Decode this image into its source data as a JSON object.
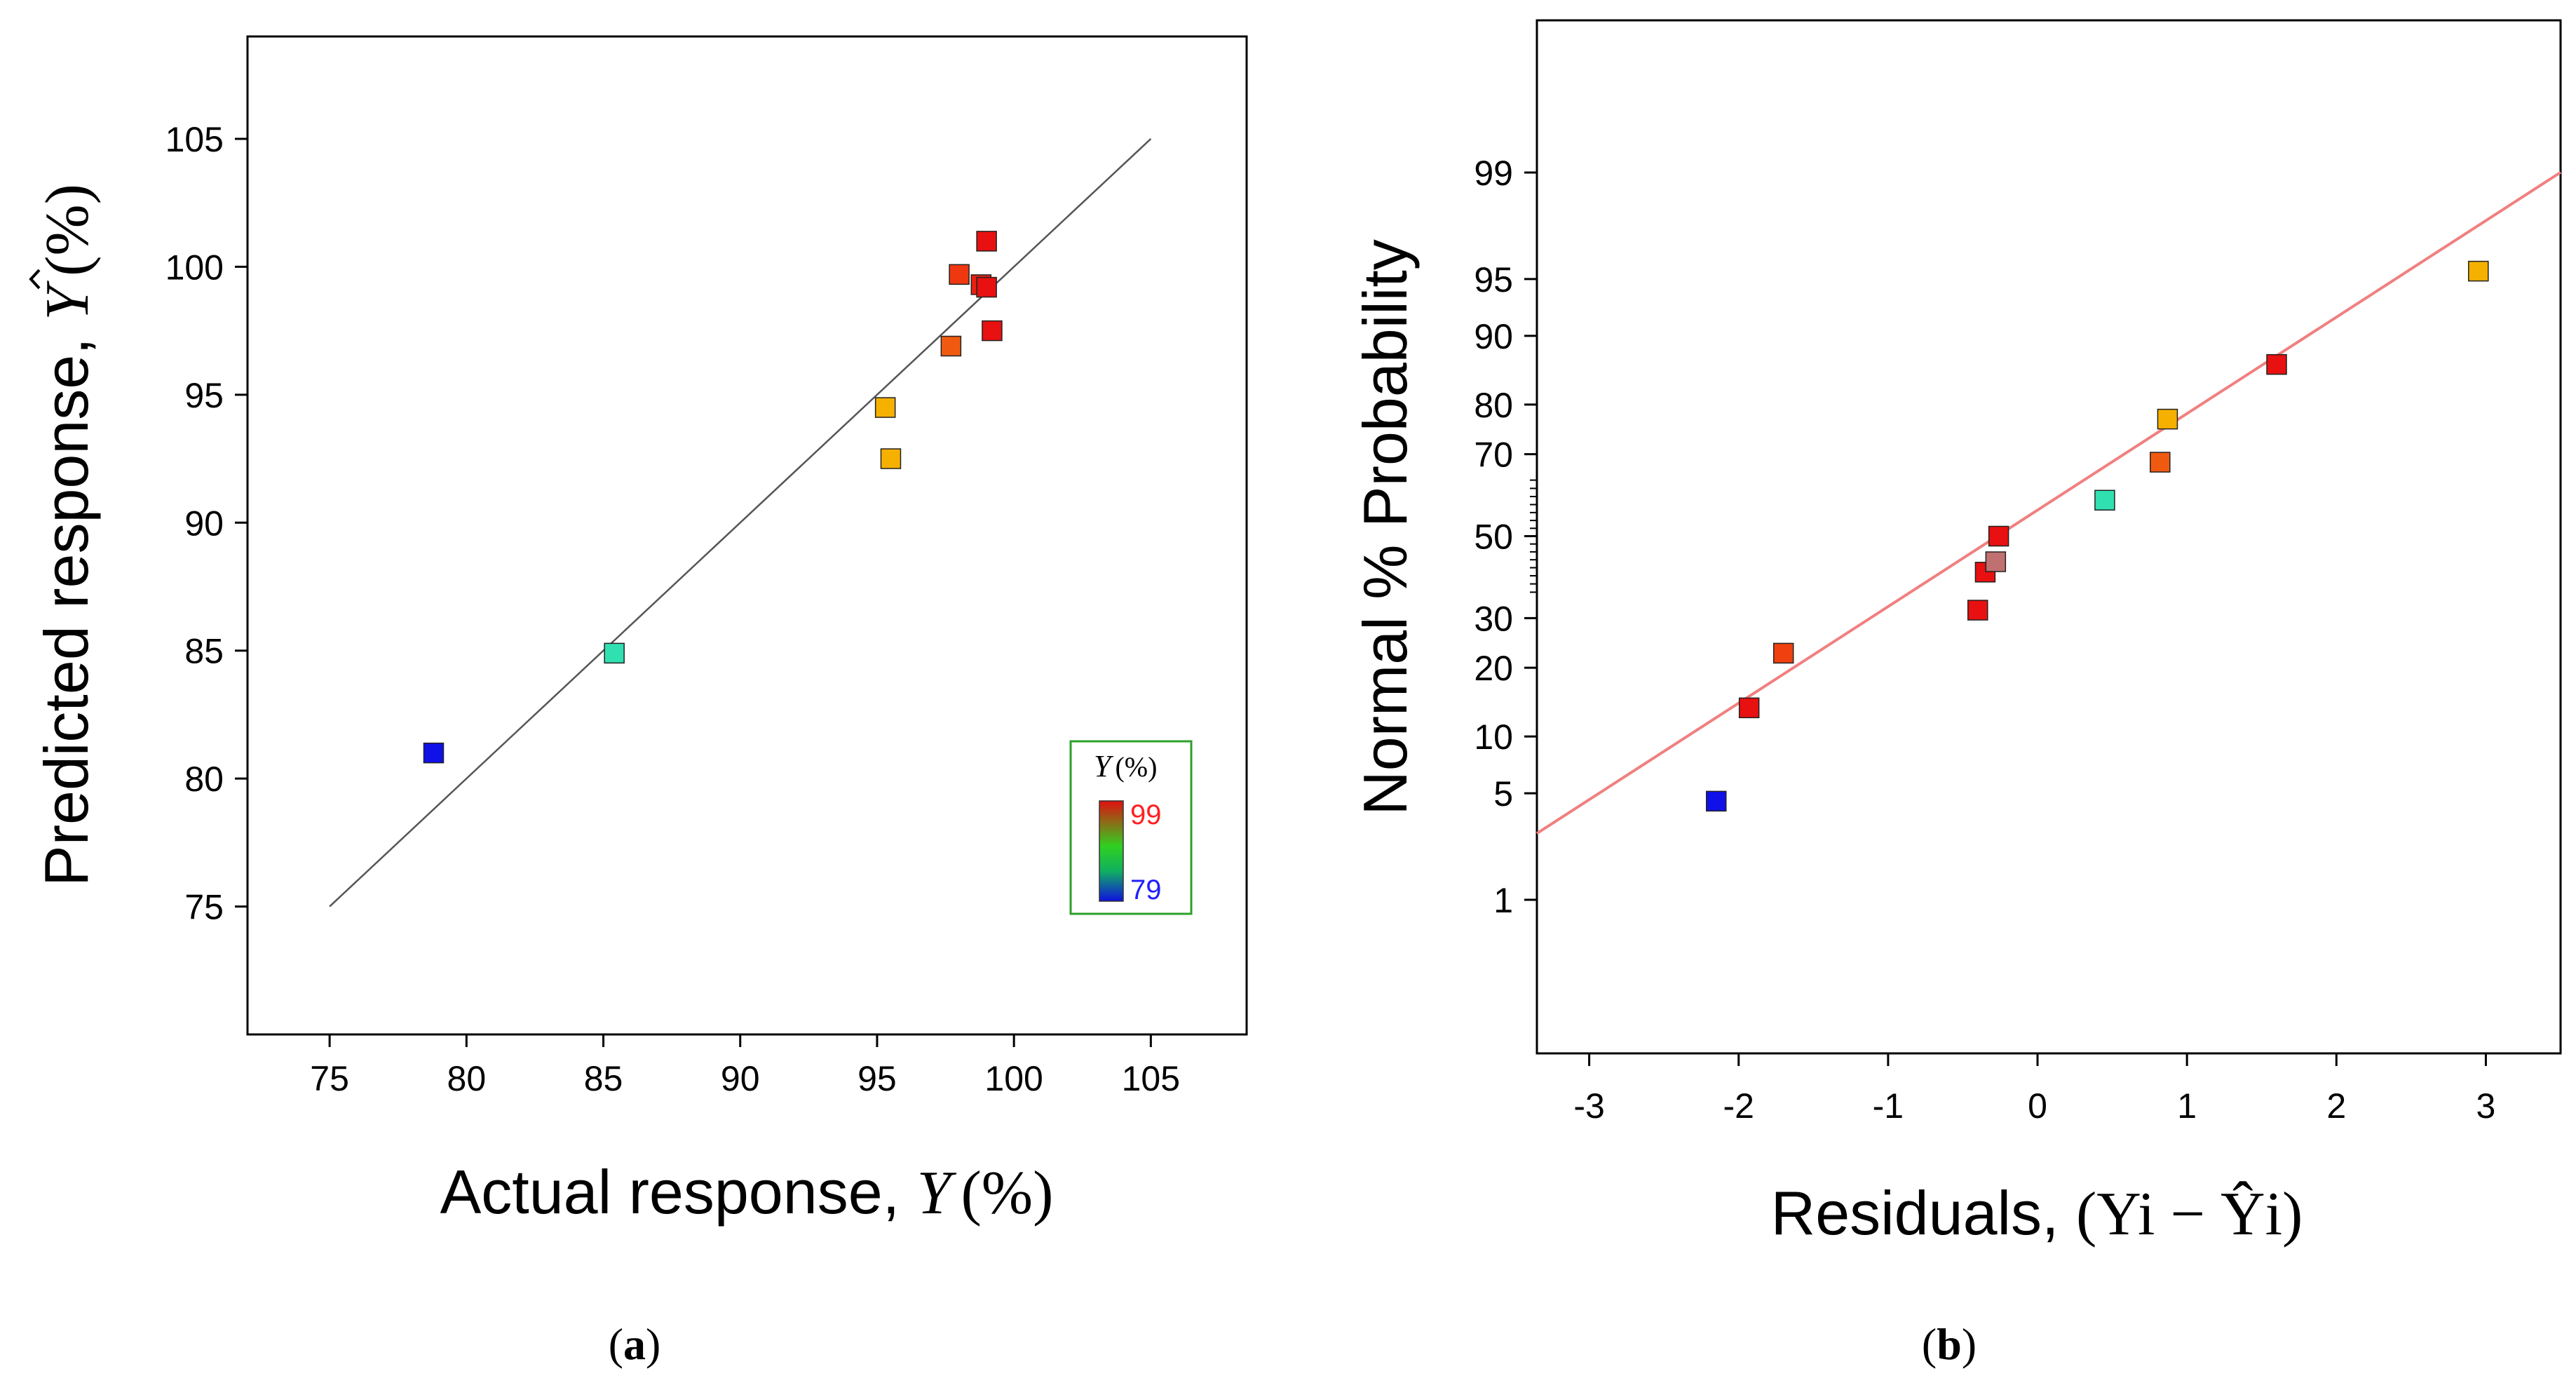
{
  "panels": {
    "a": {
      "caption_letter": "a"
    },
    "b": {
      "caption_letter": "b"
    }
  },
  "chart_data": [
    {
      "type": "scatter",
      "panel": "a",
      "xlabel_text": "Actual response, ",
      "xlabel_symbol": "Y",
      "xlabel_unit": "(%)",
      "ylabel_text": "Predicted response, ",
      "ylabel_symbol": "Y",
      "ylabel_unit": "(%)",
      "xlim": [
        72,
        108.5
      ],
      "ylim": [
        70,
        109
      ],
      "xticks": [
        75,
        80,
        85,
        90,
        95,
        100,
        105
      ],
      "yticks": [
        75,
        80,
        85,
        90,
        95,
        100,
        105
      ],
      "reference_line": {
        "x": [
          75,
          105
        ],
        "y": [
          75,
          105
        ],
        "color": "#555555"
      },
      "points": [
        {
          "x": 78.8,
          "y": 81.0,
          "color": "#1010e8"
        },
        {
          "x": 85.4,
          "y": 84.9,
          "color": "#30e0b0"
        },
        {
          "x": 95.3,
          "y": 94.5,
          "color": "#f5b000"
        },
        {
          "x": 95.5,
          "y": 92.5,
          "color": "#f5b000"
        },
        {
          "x": 97.7,
          "y": 96.9,
          "color": "#f05a10"
        },
        {
          "x": 98.0,
          "y": 99.7,
          "color": "#f03810"
        },
        {
          "x": 98.8,
          "y": 99.3,
          "color": "#e82010"
        },
        {
          "x": 99.0,
          "y": 99.2,
          "color": "#e81010"
        },
        {
          "x": 99.0,
          "y": 101.0,
          "color": "#e81010"
        },
        {
          "x": 99.2,
          "y": 97.5,
          "color": "#e81010"
        }
      ],
      "legend": {
        "title_symbol": "Y",
        "title_unit": "(%)",
        "max_label": "99",
        "min_label": "79",
        "max_color": "#ff2020",
        "min_color": "#2020ff",
        "border_color": "#2ca02c",
        "placement": "bottom-right"
      }
    },
    {
      "type": "scatter",
      "panel": "b",
      "xlabel_text": "Residuals, ",
      "xlabel_math": "(Yi − Ŷi)",
      "ylabel": "Normal % Probability",
      "xlim": [
        -3.35,
        3.5
      ],
      "xticks": [
        -3,
        -2,
        -1,
        0,
        1,
        2,
        3
      ],
      "yscale": "normal-probability",
      "yticks": [
        1,
        5,
        10,
        20,
        30,
        50,
        70,
        80,
        90,
        95,
        99
      ],
      "fit_line": {
        "color": "#f08080"
      },
      "points": [
        {
          "x": -2.15,
          "p": 4.5,
          "color": "#1010e8"
        },
        {
          "x": -1.93,
          "p": 13.6,
          "color": "#e81010"
        },
        {
          "x": -1.7,
          "p": 22.7,
          "color": "#f04010"
        },
        {
          "x": -0.4,
          "p": 31.8,
          "color": "#e81010"
        },
        {
          "x": -0.35,
          "p": 40.9,
          "color": "#e81010"
        },
        {
          "x": -0.28,
          "p": 43.5,
          "color": "#c07070"
        },
        {
          "x": -0.26,
          "p": 50.0,
          "color": "#e81010"
        },
        {
          "x": 0.45,
          "p": 59.1,
          "color": "#30e0b0"
        },
        {
          "x": 0.82,
          "p": 68.2,
          "color": "#f05a10"
        },
        {
          "x": 0.87,
          "p": 77.3,
          "color": "#f5b000"
        },
        {
          "x": 1.6,
          "p": 86.4,
          "color": "#e81010"
        },
        {
          "x": 2.95,
          "p": 95.5,
          "color": "#f5b000"
        }
      ]
    }
  ]
}
